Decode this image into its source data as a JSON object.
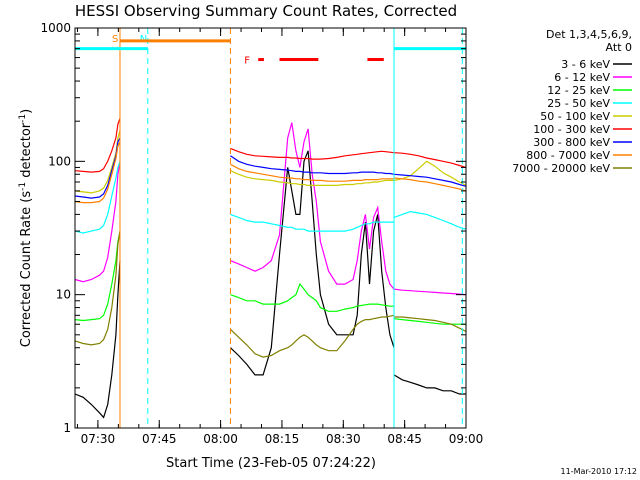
{
  "chart_data": {
    "type": "line",
    "title": "HESSI Observing Summary Count Rates, Corrected",
    "xlabel": "Start Time (23-Feb-05 07:24:22)",
    "ylabel_main": "Corrected Count Rate (s",
    "ylabel_sup1": "-1",
    "ylabel_mid": " detector",
    "ylabel_sup2": "-1",
    "ylabel_end": ")",
    "footer_date": "11-Mar-2010 17:12",
    "y_scale": "log",
    "ylim": [
      1,
      1000
    ],
    "xlim_minutes": [
      0,
      95.6
    ],
    "y_ticks": [
      {
        "v": 1,
        "label": "1"
      },
      {
        "v": 10,
        "label": "10"
      },
      {
        "v": 100,
        "label": "100"
      },
      {
        "v": 1000,
        "label": "1000"
      }
    ],
    "x_ticks": [
      {
        "t": 5.6,
        "label": "07:30"
      },
      {
        "t": 20.6,
        "label": "07:45"
      },
      {
        "t": 35.6,
        "label": "08:00"
      },
      {
        "t": 50.6,
        "label": "08:15"
      },
      {
        "t": 65.6,
        "label": "08:30"
      },
      {
        "t": 80.6,
        "label": "08:45"
      },
      {
        "t": 95.6,
        "label": "09:00"
      }
    ],
    "legend_header": [
      "Det 1,3,4,5,6,9,",
      "Att 0"
    ],
    "series": [
      {
        "name": "3 - 6 keV",
        "color": "#000000",
        "key": "e1"
      },
      {
        "name": "6 - 12 keV",
        "color": "#ff00ff",
        "key": "e2"
      },
      {
        "name": "12 - 25 keV",
        "color": "#00ff00",
        "key": "e3"
      },
      {
        "name": "25 - 50 keV",
        "color": "#00ffff",
        "key": "e4"
      },
      {
        "name": "50 - 100 keV",
        "color": "#cccc00",
        "key": "e5"
      },
      {
        "name": "100 - 300 keV",
        "color": "#ff0000",
        "key": "e6"
      },
      {
        "name": "300 - 800 keV",
        "color": "#0000ff",
        "key": "e7"
      },
      {
        "name": "800 - 7000 keV",
        "color": "#ff8000",
        "key": "e8"
      },
      {
        "name": "7000 - 20000 keV",
        "color": "#808000",
        "key": "e9"
      }
    ],
    "markers": [
      {
        "label": "S",
        "t": 11.0,
        "color": "#ff8000",
        "style": "solid"
      },
      {
        "label": "N",
        "t": 17.8,
        "color": "#00ffff",
        "style": "dashed"
      },
      {
        "label": "",
        "t": 38.0,
        "color": "#ff8000",
        "style": "dashed"
      },
      {
        "label": "",
        "t": 78.0,
        "color": "#00ffff",
        "style": "solid"
      },
      {
        "label": "",
        "t": 94.7,
        "color": "#00ffff",
        "style": "dashed"
      }
    ],
    "flags": [
      {
        "label": "",
        "color": "#00ffff",
        "t0": 0,
        "t1": 17.8,
        "y": 700
      },
      {
        "label": "",
        "color": "#ff8000",
        "t0": 11.0,
        "t1": 38.0,
        "y": 800
      },
      {
        "label": "F",
        "color": "#ff0000",
        "t0": 44.8,
        "t1": 46.2,
        "y": 580
      },
      {
        "label": "",
        "color": "#ff0000",
        "t0": 50.0,
        "t1": 59.5,
        "y": 580
      },
      {
        "label": "",
        "color": "#ff0000",
        "t0": 71.5,
        "t1": 75.5,
        "y": 580
      },
      {
        "label": "",
        "color": "#00ffff",
        "t0": 78.0,
        "t1": 95.6,
        "y": 700
      }
    ],
    "segments": [
      {
        "x": [
          0,
          2,
          4,
          6,
          7,
          8,
          9,
          10,
          10.5,
          11
        ],
        "e9": [
          4.5,
          4.3,
          4.2,
          4.3,
          4.6,
          5.5,
          8,
          14,
          24,
          30
        ],
        "e8": [
          50,
          49,
          49,
          50,
          53,
          62,
          80,
          105,
          130,
          140
        ],
        "e7": [
          55,
          54,
          53,
          54,
          57,
          66,
          85,
          110,
          140,
          150
        ],
        "e6": [
          85,
          84,
          83,
          84,
          88,
          100,
          120,
          150,
          190,
          210
        ],
        "e5": [
          60,
          59,
          58,
          60,
          63,
          72,
          90,
          115,
          150,
          170
        ],
        "e4": [
          30,
          29,
          30,
          31,
          33,
          40,
          55,
          75,
          90,
          100
        ],
        "e3": [
          6.5,
          6.4,
          6.5,
          6.6,
          7,
          8.5,
          12,
          18,
          25,
          30
        ],
        "e2": [
          13,
          12.5,
          13,
          14,
          15,
          19,
          30,
          50,
          80,
          100
        ],
        "e1": [
          1.8,
          1.7,
          1.5,
          1.3,
          1.2,
          1.5,
          2.5,
          5,
          10,
          18
        ]
      },
      {
        "x": [
          38,
          40,
          42,
          44,
          46,
          48,
          50,
          52,
          53,
          54,
          55,
          56,
          57,
          58,
          59,
          60,
          62,
          64,
          66,
          68,
          69,
          70,
          71,
          72,
          73,
          74,
          75,
          76,
          77,
          78
        ],
        "e9": [
          5.5,
          4.8,
          4.2,
          3.6,
          3.4,
          3.5,
          3.8,
          4,
          4.2,
          4.5,
          4.8,
          5,
          4.8,
          4.5,
          4.2,
          4,
          3.8,
          3.8,
          4.5,
          5.5,
          6,
          6.3,
          6.5,
          6.5,
          6.6,
          6.7,
          6.8,
          6.8,
          6.9,
          7
        ],
        "e8": [
          95,
          88,
          84,
          82,
          80,
          78,
          76,
          75,
          75,
          74,
          74,
          73,
          73,
          72,
          72,
          72,
          71,
          71,
          71,
          72,
          72,
          72,
          73,
          73,
          73,
          73,
          74,
          74,
          74,
          74
        ],
        "e7": [
          110,
          100,
          95,
          92,
          90,
          88,
          87,
          86,
          85,
          84,
          84,
          83,
          83,
          82,
          82,
          82,
          81,
          81,
          81,
          82,
          82,
          83,
          83,
          83,
          83,
          82,
          82,
          81,
          81,
          80
        ],
        "e6": [
          125,
          118,
          113,
          110,
          109,
          108,
          107,
          107,
          106,
          106,
          105,
          105,
          105,
          104,
          104,
          104,
          105,
          107,
          110,
          112,
          113,
          114,
          115,
          116,
          117,
          118,
          119,
          118,
          117,
          116
        ],
        "e5": [
          85,
          80,
          76,
          74,
          73,
          72,
          70,
          69,
          68,
          68,
          67,
          67,
          66,
          66,
          66,
          66,
          66,
          66,
          67,
          67,
          68,
          68,
          69,
          69,
          70,
          70,
          71,
          72,
          72,
          72
        ],
        "e4": [
          40,
          38,
          36,
          35,
          35,
          34,
          33,
          32,
          32,
          31,
          31,
          31,
          30,
          30,
          30,
          30,
          30,
          30,
          30,
          31,
          32,
          33,
          34,
          34,
          35,
          35,
          35,
          35,
          35,
          35
        ],
        "e3": [
          10,
          9.5,
          9,
          9,
          8.5,
          8.5,
          8.5,
          9,
          9.5,
          10,
          12,
          11,
          10,
          9.5,
          9,
          8,
          7.5,
          7.5,
          7.8,
          8,
          8.2,
          8.3,
          8.4,
          8.5,
          8.5,
          8.5,
          8.4,
          8.3,
          8.2,
          8.2
        ],
        "e2": [
          18,
          17,
          16,
          15,
          16,
          18,
          28,
          150,
          195,
          120,
          90,
          140,
          175,
          80,
          50,
          25,
          15,
          12,
          12,
          13,
          18,
          30,
          40,
          22,
          38,
          45,
          25,
          15,
          12,
          11
        ],
        "e1": [
          4,
          3.5,
          3,
          2.5,
          2.5,
          4,
          20,
          90,
          60,
          40,
          40,
          100,
          120,
          50,
          20,
          10,
          6,
          5,
          5,
          5,
          7,
          20,
          35,
          12,
          30,
          40,
          15,
          8,
          5,
          4
        ]
      },
      {
        "x": [
          78,
          80,
          82,
          84,
          86,
          88,
          90,
          92,
          94,
          95.6
        ],
        "e9": [
          6.8,
          6.8,
          6.7,
          6.6,
          6.5,
          6.4,
          6.2,
          6,
          5.6,
          5.3
        ],
        "e8": [
          75,
          74,
          73,
          71,
          70,
          68,
          66,
          64,
          62,
          60
        ],
        "e7": [
          80,
          79,
          78,
          77,
          76,
          74,
          72,
          70,
          67,
          65
        ],
        "e6": [
          116,
          115,
          113,
          110,
          106,
          103,
          100,
          97,
          93,
          90
        ],
        "e5": [
          72,
          74,
          78,
          88,
          100,
          92,
          82,
          76,
          70,
          66
        ],
        "e4": [
          38,
          40,
          42,
          41,
          40,
          38,
          36,
          34,
          32,
          31
        ],
        "e3": [
          6.6,
          6.5,
          6.4,
          6.3,
          6.2,
          6.1,
          6,
          6,
          6,
          6
        ],
        "e2": [
          11,
          10.8,
          10.7,
          10.6,
          10.5,
          10.4,
          10.3,
          10.2,
          10.1,
          10
        ],
        "e1": [
          2.5,
          2.3,
          2.2,
          2.1,
          2.0,
          2.0,
          1.9,
          1.9,
          1.8,
          1.8
        ]
      }
    ]
  }
}
